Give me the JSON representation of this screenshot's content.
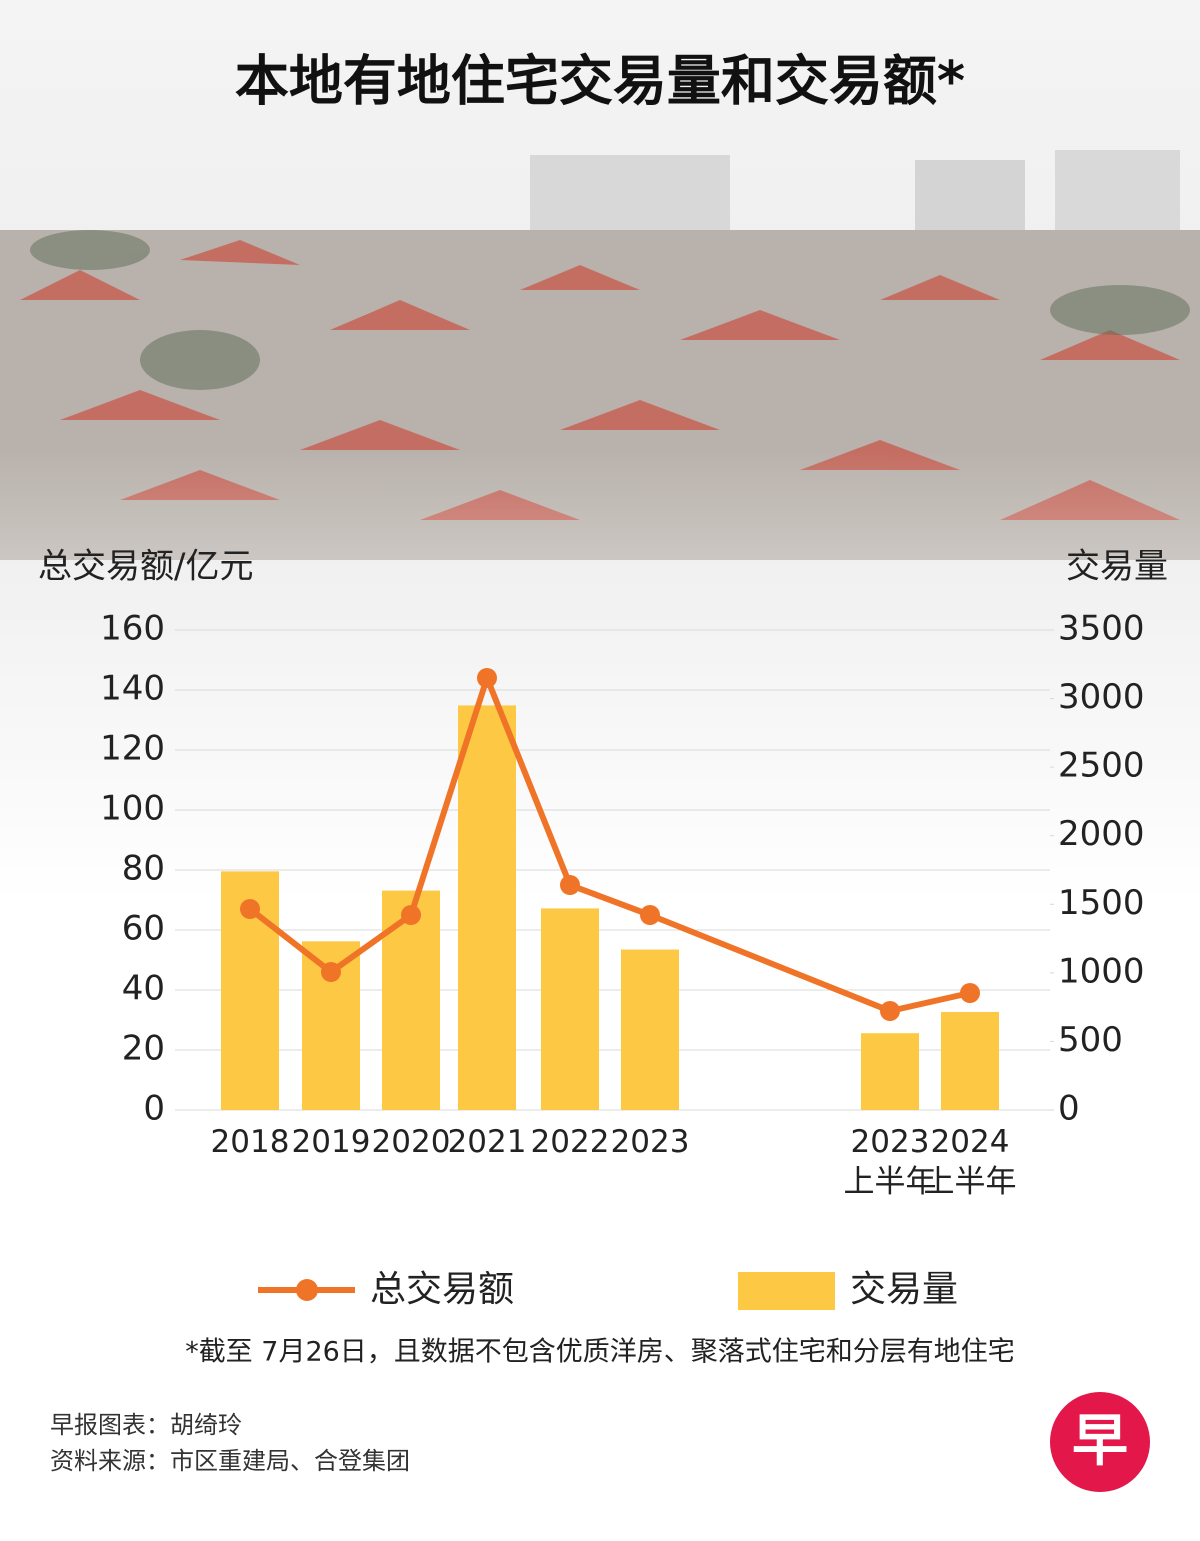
{
  "chart_data": {
    "type": "bar_line",
    "title": "本地有地住宅交易量和交易额*",
    "y_label": "总交易额/亿元",
    "y2_label": "交易量",
    "categories": [
      "2018",
      "2019",
      "2020",
      "2021",
      "2022",
      "2023",
      "2023\n上半年",
      "2024\n上半年"
    ],
    "series": [
      {
        "name": "总交易额",
        "type": "line",
        "color": "#f07427",
        "axis": "y",
        "values": [
          67,
          46,
          65,
          144,
          75,
          65,
          33,
          39
        ]
      },
      {
        "name": "交易量",
        "type": "bar",
        "color": "#fdc945",
        "axis": "y2",
        "values": [
          1740,
          1230,
          1600,
          2950,
          1470,
          1170,
          560,
          715
        ]
      }
    ],
    "ylim": [
      0,
      160
    ],
    "yticks": [
      0,
      20,
      40,
      60,
      80,
      100,
      120,
      140,
      160
    ],
    "y2lim": [
      0,
      3500
    ],
    "y2ticks": [
      0,
      500,
      1000,
      1500,
      2000,
      2500,
      3000,
      3500
    ],
    "grid": true,
    "footnote": "*截至 7月26日，且数据不包含优质洋房、聚落式住宅和分层有地住宅",
    "credit": "早报图表：胡绮玲",
    "source": "资料来源：市区重建局、合登集团",
    "logo": "早"
  }
}
